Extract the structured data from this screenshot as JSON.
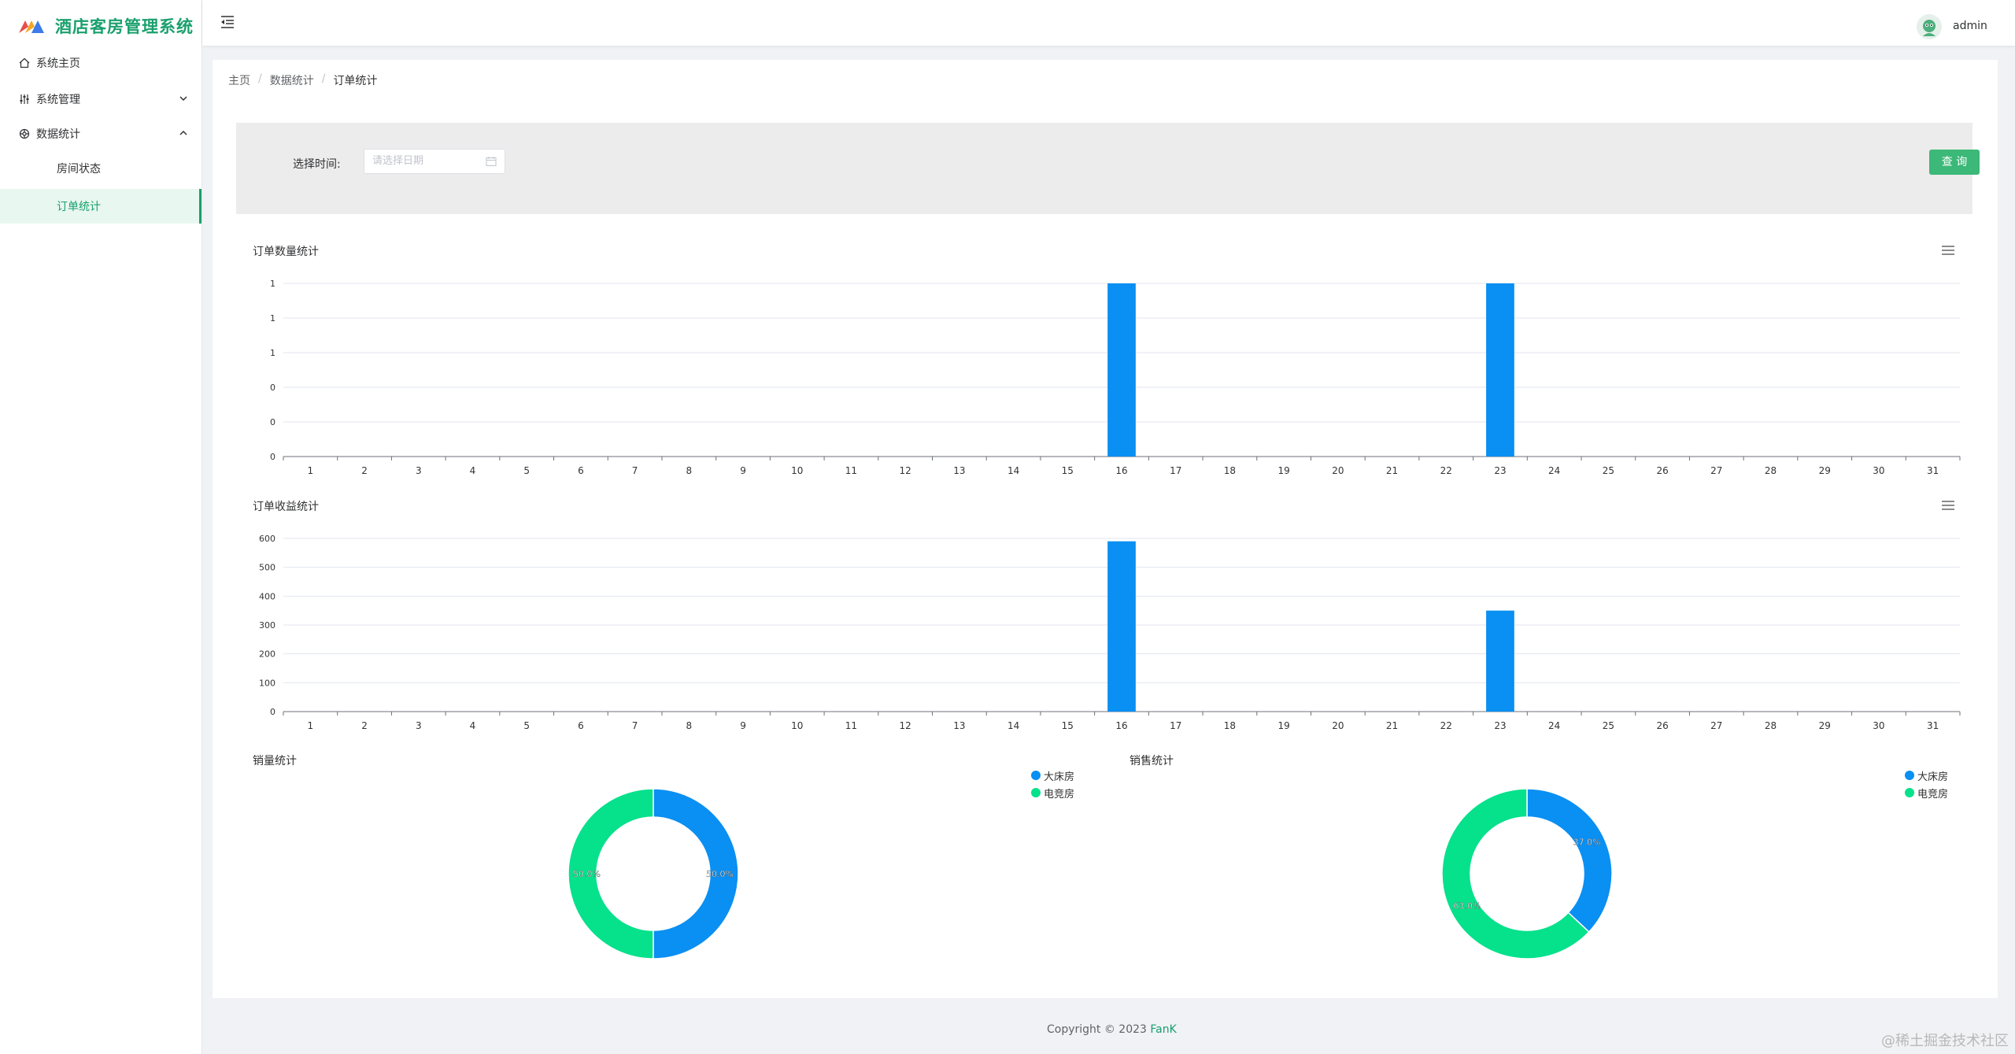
{
  "app": {
    "title": "酒店客房管理系统"
  },
  "sidebar": {
    "items": [
      {
        "label": "系统主页",
        "icon": "home-icon"
      },
      {
        "label": "系统管理",
        "icon": "settings-icon"
      },
      {
        "label": "数据统计",
        "icon": "data-icon"
      },
      {
        "label": "房间状态"
      },
      {
        "label": "订单统计"
      }
    ]
  },
  "header": {
    "username": "admin"
  },
  "breadcrumb": {
    "items": [
      "主页",
      "数据统计",
      "订单统计"
    ],
    "separator": "/"
  },
  "filter": {
    "label": "选择时间:",
    "placeholder": "请选择日期",
    "button": "查 询"
  },
  "charts": [
    {
      "title": "订单数量统计",
      "type": "bar",
      "categories": [
        "1",
        "2",
        "3",
        "4",
        "5",
        "6",
        "7",
        "8",
        "9",
        "10",
        "11",
        "12",
        "13",
        "14",
        "15",
        "16",
        "17",
        "18",
        "19",
        "20",
        "21",
        "22",
        "23",
        "24",
        "25",
        "26",
        "27",
        "28",
        "29",
        "30",
        "31"
      ],
      "values": [
        0,
        0,
        0,
        0,
        0,
        0,
        0,
        0,
        0,
        0,
        0,
        0,
        0,
        0,
        0,
        1,
        0,
        0,
        0,
        0,
        0,
        0,
        1,
        0,
        0,
        0,
        0,
        0,
        0,
        0,
        0
      ],
      "yticks": [
        "0",
        "0",
        "0",
        "1",
        "1",
        "1"
      ],
      "ylim": [
        0,
        1
      ],
      "color": "#0a8ff2"
    },
    {
      "title": "订单收益统计",
      "type": "bar",
      "categories": [
        "1",
        "2",
        "3",
        "4",
        "5",
        "6",
        "7",
        "8",
        "9",
        "10",
        "11",
        "12",
        "13",
        "14",
        "15",
        "16",
        "17",
        "18",
        "19",
        "20",
        "21",
        "22",
        "23",
        "24",
        "25",
        "26",
        "27",
        "28",
        "29",
        "30",
        "31"
      ],
      "values": [
        0,
        0,
        0,
        0,
        0,
        0,
        0,
        0,
        0,
        0,
        0,
        0,
        0,
        0,
        0,
        590,
        0,
        0,
        0,
        0,
        0,
        0,
        350,
        0,
        0,
        0,
        0,
        0,
        0,
        0,
        0
      ],
      "yticks": [
        "0",
        "100",
        "200",
        "300",
        "400",
        "500",
        "600"
      ],
      "ylim": [
        0,
        600
      ],
      "color": "#0a8ff2"
    }
  ],
  "chart_data": [
    {
      "type": "pie",
      "title": "销量统计",
      "labels": [
        "大床房",
        "电竞房"
      ],
      "values": [
        50.0,
        50.0
      ],
      "value_labels": [
        "50.0%",
        "50.0%"
      ],
      "colors": [
        "#0a8ff2",
        "#06e18b"
      ]
    },
    {
      "type": "pie",
      "title": "销售统计",
      "labels": [
        "大床房",
        "电竞房"
      ],
      "values": [
        37.0,
        63.0
      ],
      "value_labels": [
        "37.0%",
        "63.0%"
      ],
      "colors": [
        "#0a8ff2",
        "#06e18b"
      ]
    }
  ],
  "footer": {
    "prefix": "Copyright ",
    "copyright_symbol": "©",
    "year": " 2023 ",
    "author": "FanK"
  },
  "watermark": "@稀土掘金技术社区"
}
